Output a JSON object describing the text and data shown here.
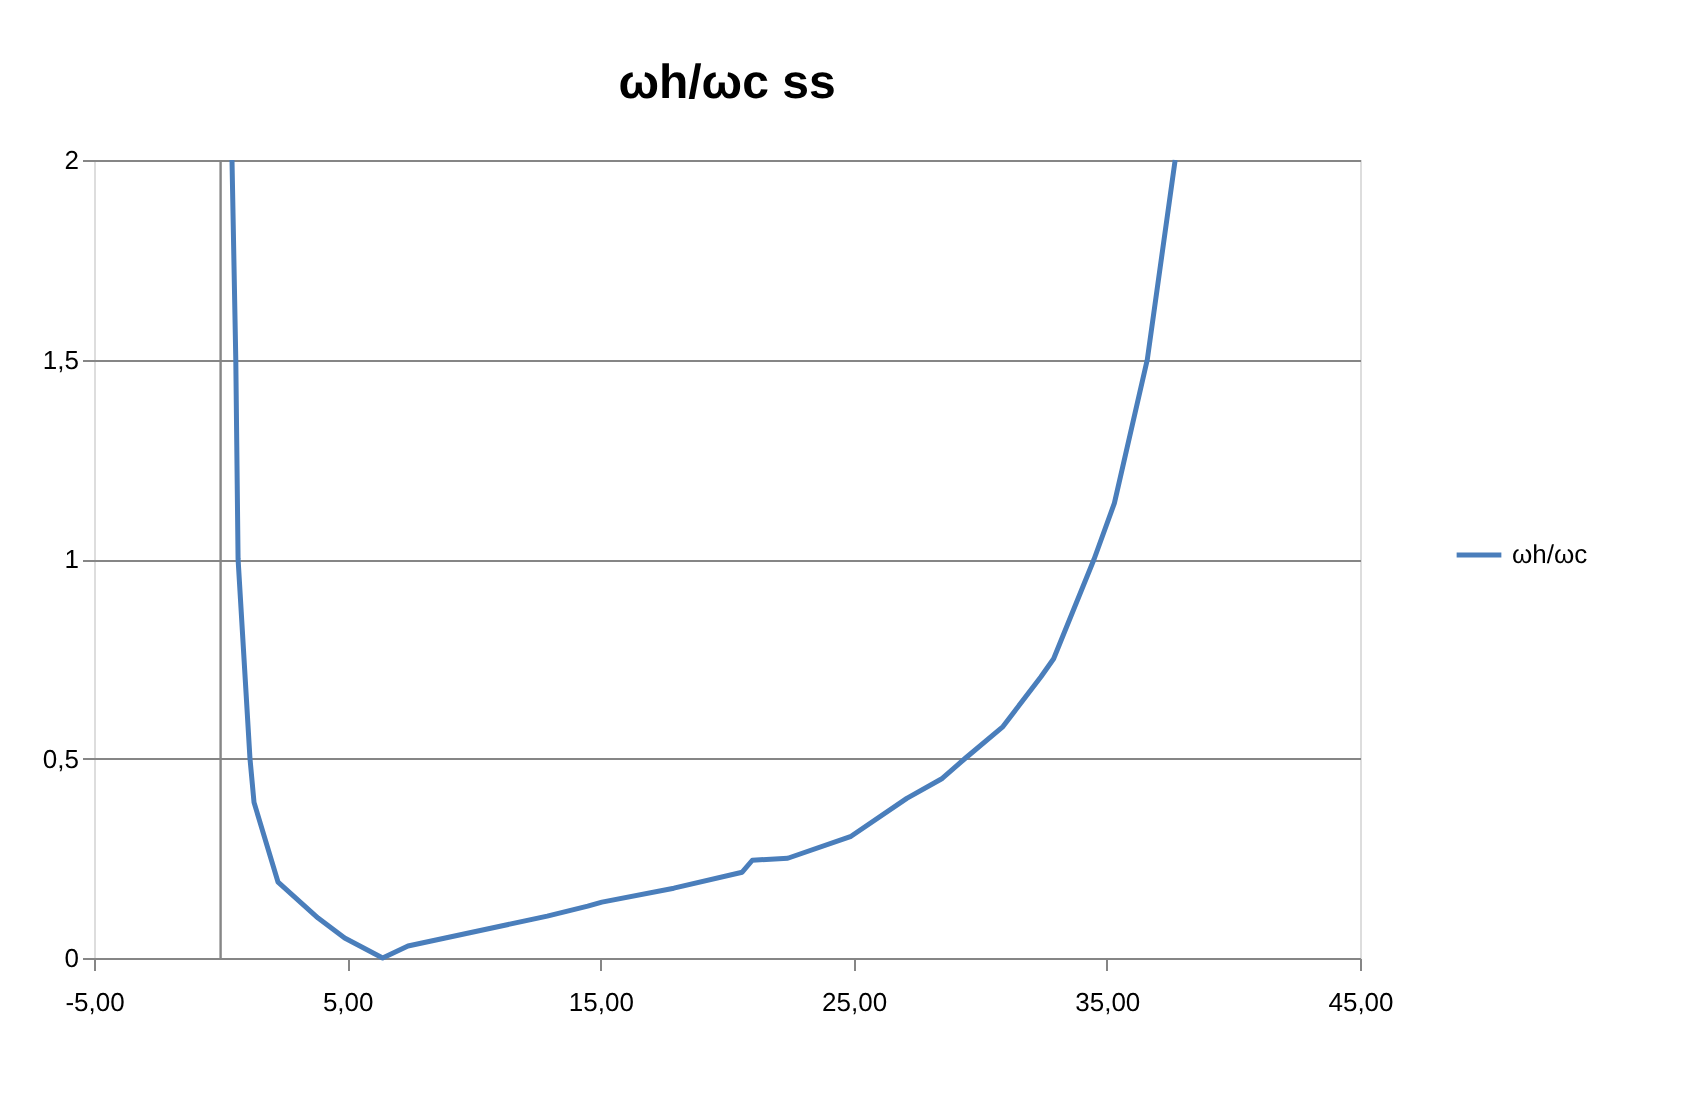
{
  "chart_data": {
    "type": "line",
    "title": "ωh/ωc ss",
    "series": [
      {
        "name": "ωh/ωc",
        "color": "#4a7ebb",
        "x": [
          0.45,
          0.6,
          0.69,
          1.16,
          1.32,
          2.27,
          3.85,
          4.9,
          6.4,
          7.4,
          12.9,
          14.5,
          15.06,
          17.9,
          20.6,
          21.0,
          22.4,
          24.9,
          27.1,
          28.5,
          29.4,
          30.9,
          32.4,
          32.9,
          34.5,
          35.3,
          36.6,
          37.7
        ],
        "values": [
          2,
          1.5,
          1,
          0.5,
          0.39,
          0.19,
          0.1,
          0.05,
          0,
          0.03,
          0.105,
          0.13,
          0.14,
          0.175,
          0.215,
          0.245,
          0.25,
          0.305,
          0.4,
          0.45,
          0.5,
          0.58,
          0.705,
          0.75,
          1.0,
          1.14,
          1.5,
          2
        ]
      }
    ],
    "xlim": [
      -5,
      45
    ],
    "xticks": [
      {
        "value": -5,
        "label": "-5,00"
      },
      {
        "value": 5,
        "label": "5,00"
      },
      {
        "value": 15,
        "label": "15,00"
      },
      {
        "value": 25,
        "label": "25,00"
      },
      {
        "value": 35,
        "label": "35,00"
      },
      {
        "value": 45,
        "label": "45,00"
      }
    ],
    "ylim": [
      0,
      2
    ],
    "yticks": [
      0,
      {
        "value": 0.5,
        "label": "0,5"
      },
      1,
      {
        "value": 1.5,
        "label": "1,5"
      },
      2
    ],
    "ref_lines": [
      {
        "axis": "x",
        "value": 0,
        "color": "#868686"
      }
    ],
    "grid": "y",
    "legend": "right",
    "marker": "none",
    "line_style": "solid"
  }
}
